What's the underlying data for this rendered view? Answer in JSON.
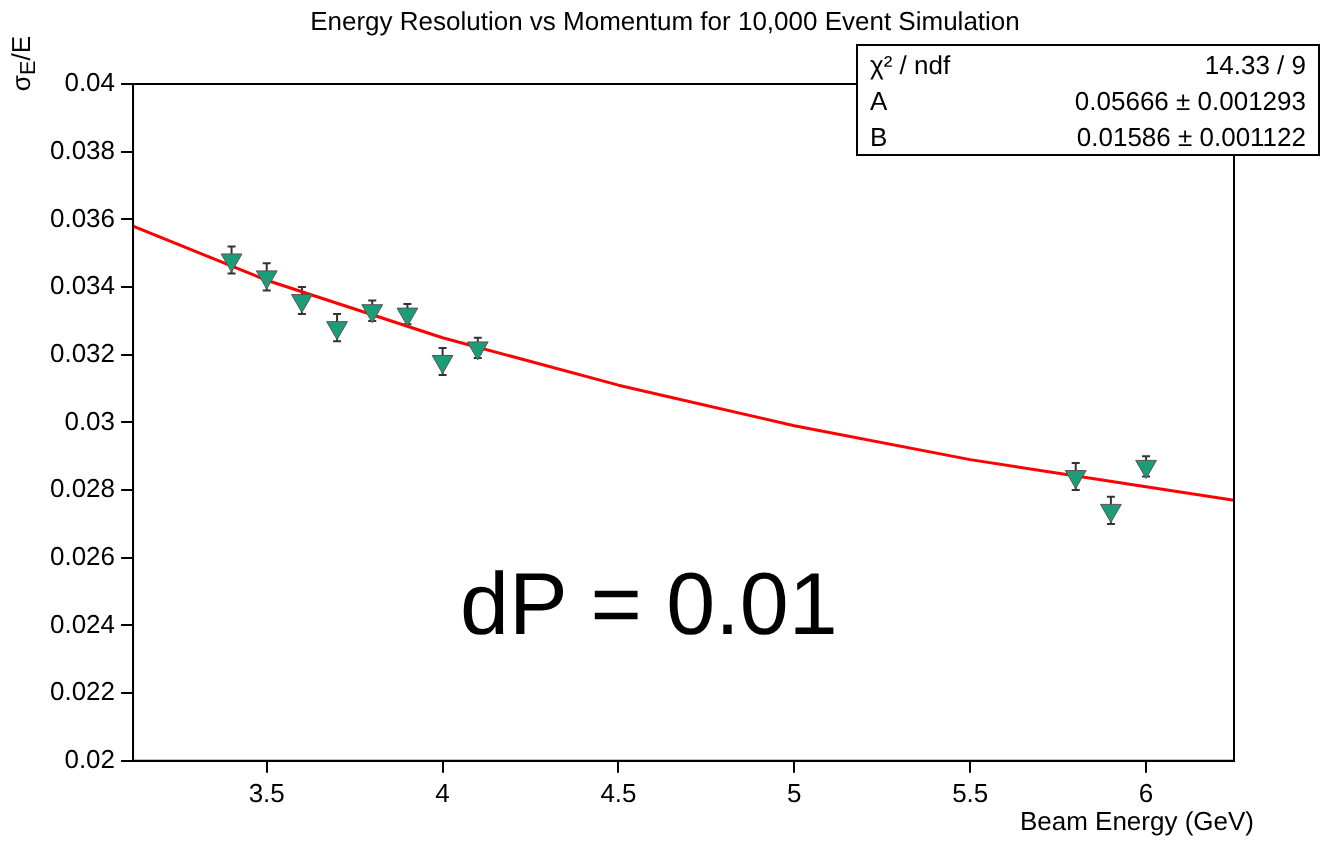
{
  "chart_data": {
    "type": "scatter",
    "title": "Energy Resolution vs Momentum for 10,000 Event Simulation",
    "xlabel": "Beam Energy (GeV)",
    "ylabel": "σ$_{E}$/E",
    "annotations": [
      "dP = 0.01",
      "χ² / ndf",
      "14.33 / 9",
      "A",
      "0.05666 ± 0.001293",
      "B",
      "0.01586 ± 0.001122"
    ],
    "series": [
      {
        "color": "#1b9e77",
        "marker": "triangle",
        "x": [
          3.4,
          3.5,
          3.6,
          3.7,
          3.8,
          3.9,
          4.0,
          4.1,
          5.8,
          5.9,
          6.0
        ],
        "values": [
          0.0348,
          0.0343,
          0.0336,
          0.0328,
          0.0333,
          0.0332,
          0.0318,
          0.0322,
          0.0284,
          0.0274,
          0.0287
        ],
        "errors": [
          0.0004,
          0.0004,
          0.0004,
          0.0004,
          0.0003,
          0.0003,
          0.0004,
          0.0003,
          0.0004,
          0.0004,
          0.0003
        ]
      },
      {
        "type": "line",
        "color": "#ff0000",
        "marker": "none",
        "line_style": "solid",
        "x": [
          3.12,
          3.5,
          4,
          4.5,
          5,
          5.5,
          6,
          6.25
        ],
        "values": [
          0.0358,
          0.0342,
          0.0325,
          0.0311,
          0.0299,
          0.0289,
          0.0281,
          0.0277
        ]
      }
    ],
    "xlim": [
      3.12,
      6.25
    ],
    "xticks": [
      3.5,
      4,
      4.5,
      5,
      5.5,
      6
    ],
    "ylim": [
      0.02,
      0.04
    ],
    "yticks": [
      0.02,
      0.022,
      0.024,
      0.026,
      0.028,
      0.03,
      0.032,
      0.034,
      0.036,
      0.038,
      0.04
    ],
    "grid": false,
    "legend": false
  }
}
